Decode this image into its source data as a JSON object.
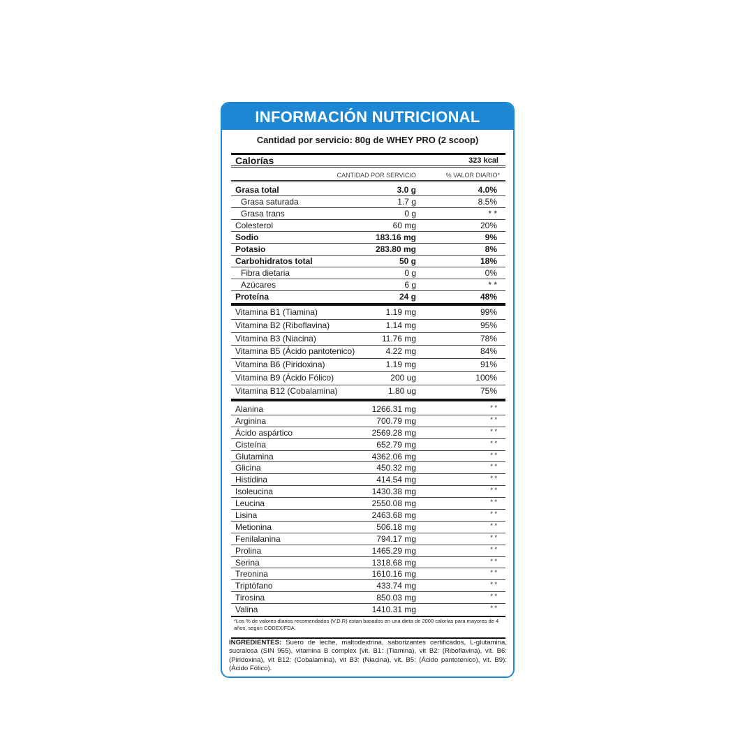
{
  "title": "INFORMACIÓN NUTRICIONAL",
  "serving": "Cantidad por servicio: 80g de WHEY PRO (2 scoop)",
  "calories": {
    "label": "Calorías",
    "value": "323 kcal"
  },
  "columns": {
    "amount": "CANTIDAD POR SERVICIO",
    "dv": "% VALOR DIARIO*"
  },
  "nutrients": [
    {
      "name": "Grasa total",
      "amount": "3.0 g",
      "dv": "4.0%",
      "bold": true
    },
    {
      "name": "Grasa saturada",
      "amount": "1.7 g",
      "dv": "8.5%",
      "indent": true
    },
    {
      "name": "Grasa trans",
      "amount": "0 g",
      "dv": "* *",
      "indent": true
    },
    {
      "name": "Colesterol",
      "amount": "60 mg",
      "dv": "20%"
    },
    {
      "name": "Sodio",
      "amount": "183.16 mg",
      "dv": "9%",
      "bold": true
    },
    {
      "name": "Potasio",
      "amount": "283.80 mg",
      "dv": "8%",
      "bold": true
    },
    {
      "name": "Carbohidratos total",
      "amount": "50 g",
      "dv": "18%",
      "bold": true
    },
    {
      "name": "Fibra dietaria",
      "amount": "0 g",
      "dv": "0%",
      "indent": true
    },
    {
      "name": "Azúcares",
      "amount": "6 g",
      "dv": "* *",
      "indent": true
    },
    {
      "name": "Proteína",
      "amount": "24 g",
      "dv": "48%",
      "bold": true
    }
  ],
  "vitamins": [
    {
      "name": "Vitamina B1 (Tiamina)",
      "amount": "1.19 mg",
      "dv": "99%"
    },
    {
      "name": "Vitamina B2 (Riboflavina)",
      "amount": "1.14 mg",
      "dv": "95%"
    },
    {
      "name": "Vitamina B3 (Niacina)",
      "amount": "11.76 mg",
      "dv": "78%"
    },
    {
      "name": "Vitamina B5 (Ácido pantotenico)",
      "amount": "4.22 mg",
      "dv": "84%"
    },
    {
      "name": "Vitamina B6 (Piridoxina)",
      "amount": "1.19 mg",
      "dv": "91%"
    },
    {
      "name": "Vitamina B9 (Ácido Fólico)",
      "amount": "200 ug",
      "dv": "100%"
    },
    {
      "name": "Vitamina B12 (Cobalamina)",
      "amount": "1.80 ug",
      "dv": "75%"
    }
  ],
  "amino_acids": [
    {
      "name": "Alanina",
      "amount": "1266.31 mg",
      "dv": "* *"
    },
    {
      "name": "Arginina",
      "amount": "700.79 mg",
      "dv": "* *"
    },
    {
      "name": "Ácido aspártico",
      "amount": "2569.28 mg",
      "dv": "* *"
    },
    {
      "name": "Cisteína",
      "amount": "652.79 mg",
      "dv": "* *"
    },
    {
      "name": "Glutamina",
      "amount": "4362.06 mg",
      "dv": "* *"
    },
    {
      "name": "Glicina",
      "amount": "450.32 mg",
      "dv": "* *"
    },
    {
      "name": "Histidina",
      "amount": "414.54 mg",
      "dv": "* *"
    },
    {
      "name": "Isoleucina",
      "amount": "1430.38 mg",
      "dv": "* *"
    },
    {
      "name": "Leucina",
      "amount": "2550.08 mg",
      "dv": "* *"
    },
    {
      "name": "Lisina",
      "amount": "2463.68 mg",
      "dv": "* *"
    },
    {
      "name": "Metionina",
      "amount": "506.18 mg",
      "dv": "* *"
    },
    {
      "name": "Fenilalanina",
      "amount": "794.17 mg",
      "dv": "* *"
    },
    {
      "name": "Prolina",
      "amount": "1465.29 mg",
      "dv": "* *"
    },
    {
      "name": "Serina",
      "amount": "1318.68 mg",
      "dv": "* *"
    },
    {
      "name": "Treonina",
      "amount": "1610.16 mg",
      "dv": "* *"
    },
    {
      "name": "Triptófano",
      "amount": "433.74 mg",
      "dv": "* *"
    },
    {
      "name": "Tirosina",
      "amount": "850.03 mg",
      "dv": "* *"
    },
    {
      "name": "Valina",
      "amount": "1410.31 mg",
      "dv": "* *"
    }
  ],
  "footnote": "*Los % de valores diarios recomendados (V.D.R) estan basados en una dieta de 2000 calorías para mayores de 4 años, según CODEX/FDA.",
  "ingredients": {
    "label": "INGREDIENTES:",
    "text": " Suero de leche, maltodextrina, saborizantes certificados, L-glutamina, sucralosa (SIN 955), vitamina B complex [vit. B1: (Tiamina), vit B2: (Riboflavina), vit. B6: (Piridoxina), vit B12: (Cobalamina), vit B3: (Niacina), vit. B5: (Ácido pantotenico), vit. B9): (Ácido Fólico)."
  },
  "colors": {
    "accent": "#1d87d4"
  }
}
